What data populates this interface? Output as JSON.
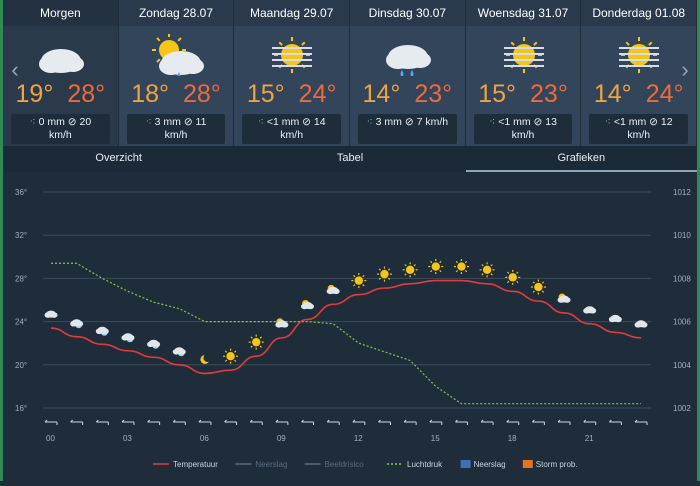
{
  "nav": {
    "prev_icon": "chevron-left-icon",
    "next_icon": "chevron-right-icon"
  },
  "days": [
    {
      "label": "Morgen",
      "tmin": "19°",
      "tmax": "28°",
      "rain": "0 mm",
      "wind": "20",
      "unit": "km/h",
      "icon": "cloud-icon"
    },
    {
      "label": "Zondag 28.07",
      "tmin": "18°",
      "tmax": "28°",
      "rain": "3 mm",
      "wind": "11",
      "unit": "km/h",
      "icon": "sun-cloud-rain-icon"
    },
    {
      "label": "Maandag 29.07",
      "tmin": "15°",
      "tmax": "24°",
      "rain": "<1 mm",
      "wind": "14",
      "unit": "km/h",
      "icon": "hazy-sun-icon"
    },
    {
      "label": "Dinsdag 30.07",
      "tmin": "14°",
      "tmax": "23°",
      "rain": "3 mm",
      "wind": "7 km/h",
      "unit": "",
      "icon": "cloud-rain-icon"
    },
    {
      "label": "Woensdag 31.07",
      "tmin": "15°",
      "tmax": "23°",
      "rain": "<1 mm",
      "wind": "13",
      "unit": "km/h",
      "icon": "hazy-sun-icon"
    },
    {
      "label": "Donderdag 01.08",
      "tmin": "14°",
      "tmax": "24°",
      "rain": "<1 mm",
      "wind": "12",
      "unit": "km/h",
      "icon": "hazy-sun-icon"
    }
  ],
  "tabs": [
    {
      "label": "Overzicht",
      "active": false
    },
    {
      "label": "Tabel",
      "active": false
    },
    {
      "label": "Grafieken",
      "active": true
    }
  ],
  "chart_data": {
    "type": "line",
    "x_ticks": [
      "00",
      "03",
      "06",
      "09",
      "12",
      "15",
      "18",
      "21"
    ],
    "y_left_ticks": [
      "36°",
      "32°",
      "28°",
      "24°",
      "20°",
      "16°"
    ],
    "y_left_range": [
      16,
      36
    ],
    "y_right_ticks": [
      "1012",
      "1010",
      "1008",
      "1006",
      "1004",
      "1002"
    ],
    "y_right_range": [
      1002,
      1012
    ],
    "hours": [
      0,
      1,
      2,
      3,
      4,
      5,
      6,
      7,
      8,
      9,
      10,
      11,
      12,
      13,
      14,
      15,
      16,
      17,
      18,
      19,
      20,
      21,
      22,
      23
    ],
    "series": [
      {
        "name": "Temperatuur",
        "color": "#e23b3b",
        "axis": "left",
        "values": [
          23.4,
          22.6,
          21.9,
          21.3,
          20.7,
          20.0,
          19.2,
          19.5,
          20.8,
          22.5,
          24.2,
          25.6,
          26.5,
          27.1,
          27.5,
          27.8,
          27.8,
          27.5,
          26.8,
          25.9,
          24.8,
          23.8,
          23.0,
          22.5
        ]
      },
      {
        "name": "Luchtdruk",
        "color": "#8bc34a",
        "axis": "right",
        "dashed": true,
        "values": [
          1008.7,
          1008.7,
          1008.0,
          1007.4,
          1006.9,
          1006.6,
          1006.0,
          1006.0,
          1006.0,
          1006.0,
          1006.0,
          1005.9,
          1005.0,
          1004.6,
          1004.2,
          1003.0,
          1002.2,
          1002.2,
          1002.2,
          1002.2,
          1002.2,
          1002.2,
          1002.2,
          1002.2
        ]
      }
    ],
    "legend": [
      {
        "label": "Temperatuur",
        "color": "#e23b3b",
        "style": "line"
      },
      {
        "label": "Neerslag",
        "color": "#5a6c7d",
        "style": "line"
      },
      {
        "label": "Beeldrisico",
        "color": "#5a6c7d",
        "style": "line"
      },
      {
        "label": "Luchtdruk",
        "color": "#8bc34a",
        "style": "dashed"
      },
      {
        "label": "Neerslag",
        "color": "#3d6fb3",
        "style": "box"
      },
      {
        "label": "Storm prob.",
        "color": "#e8721c",
        "style": "box"
      }
    ],
    "hour_icons": [
      "cloud",
      "cloud-moon",
      "cloud-moon",
      "cloud-moon",
      "cloud-moon",
      "cloud-moon",
      "moon",
      "sun",
      "sun",
      "sun-cloud",
      "sun-cloud",
      "sun-cloud",
      "sun",
      "sun",
      "sun",
      "sun",
      "sun",
      "sun",
      "sun",
      "sun",
      "sun-cloud",
      "cloud",
      "cloud",
      "cloud"
    ],
    "wind_icons": "wind-arrow-icon"
  }
}
